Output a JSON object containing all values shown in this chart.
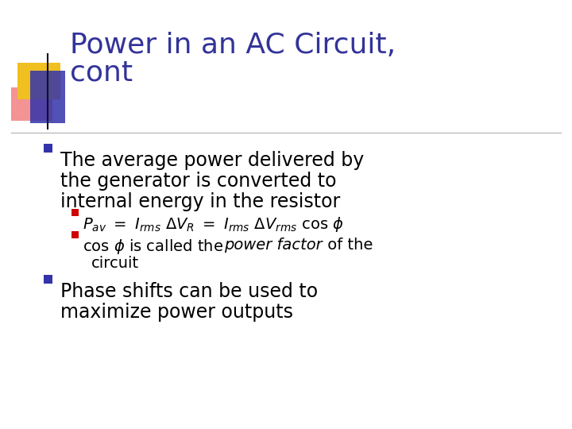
{
  "title_line1": "Power in an AC Circuit,",
  "title_line2": "cont",
  "title_color": "#333399",
  "background_color": "#ffffff",
  "divider_color": "#aaaaaa",
  "bullet_color": "#3333aa",
  "sub_bullet_color": "#cc0000",
  "text_color": "#000000",
  "logo_yellow": "#f0c020",
  "logo_red": "#ee6666",
  "logo_blue": "#3333aa",
  "bullet1_text": [
    "The average power delivered by",
    "the generator is converted to",
    "internal energy in the resistor"
  ],
  "bullet2_text": [
    "Phase shifts can be used to",
    "maximize power outputs"
  ],
  "title_fontsize": 26,
  "body_fontsize": 17,
  "sub_fontsize": 14
}
